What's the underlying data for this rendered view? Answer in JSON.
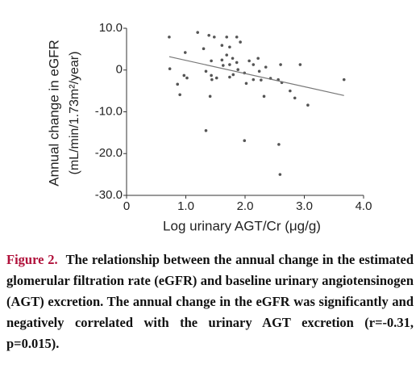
{
  "chart_data": {
    "type": "scatter",
    "xlabel": "Log urinary AGT/Cr (μg/g)",
    "ylabel": [
      "Annual change in eGFR",
      "(mL/min/1.73m²/year)"
    ],
    "xlim": [
      0,
      4
    ],
    "ylim": [
      -30,
      10
    ],
    "xticks": [
      0,
      {
        "value": 1,
        "label": "1.0"
      },
      {
        "value": 2,
        "label": "2.0"
      },
      {
        "value": 3,
        "label": "3.0"
      },
      {
        "value": 4,
        "label": "4.0"
      }
    ],
    "yticks": [
      {
        "value": 10,
        "label": "10.0"
      },
      0,
      {
        "value": -10,
        "label": "-10.0"
      },
      {
        "value": -20,
        "label": "-20.0"
      },
      {
        "value": -30,
        "label": "-30.0"
      }
    ],
    "color": "#555555",
    "x": [
      0.72,
      0.73,
      0.99,
      0.97,
      1.02,
      0.86,
      0.9,
      1.2,
      1.39,
      1.48,
      1.69,
      1.86,
      1.92,
      1.61,
      1.74,
      1.3,
      1.43,
      1.69,
      1.61,
      1.79,
      1.86,
      1.63,
      1.74,
      1.34,
      1.43,
      1.52,
      1.44,
      1.74,
      1.8,
      1.88,
      2.07,
      2.14,
      2.22,
      1.99,
      2.14,
      2.27,
      2.24,
      2.35,
      2.43,
      2.32,
      2.6,
      2.56,
      2.62,
      2.76,
      2.93,
      3.06,
      2.84,
      3.67,
      1.41,
      1.34,
      1.99,
      2.57,
      2.59,
      2.02
    ],
    "values": [
      7.9,
      0.3,
      4.2,
      -1.3,
      -1.9,
      -3.4,
      -5.9,
      9.0,
      8.3,
      7.9,
      7.9,
      7.9,
      6.7,
      5.9,
      5.5,
      5.1,
      2.2,
      3.6,
      2.4,
      2.8,
      1.8,
      1.1,
      1.3,
      -0.3,
      -1.3,
      -1.9,
      -2.3,
      -1.7,
      -1.1,
      0.1,
      2.2,
      1.3,
      2.8,
      -0.7,
      -2.3,
      -2.4,
      -0.3,
      0.7,
      -2.0,
      -6.3,
      1.3,
      -2.3,
      -3.0,
      -5.0,
      1.3,
      -8.4,
      -6.7,
      -2.3,
      -6.3,
      -14.5,
      -16.9,
      -17.8,
      -25.0,
      -3.2
    ],
    "regression": {
      "x": [
        0.72,
        3.67
      ],
      "y": [
        3.2,
        -6.1
      ],
      "color": "#777777"
    }
  },
  "caption": {
    "label": "Figure 2.",
    "text": "The relationship between the annual change in the estimated glomerular filtration rate (eGFR) and baseline urinary angiotensinogen (AGT) excretion. The annual change in the eGFR was significantly and negatively correlated with the urinary AGT excretion (r=-0.31, p=0.015)."
  }
}
